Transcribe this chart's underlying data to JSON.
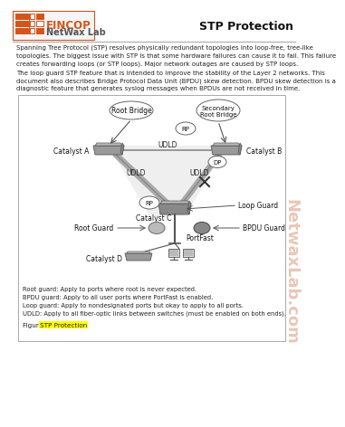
{
  "title": "STP Protection",
  "logo_text1": "EINCOP",
  "logo_text2": "NetWax Lab",
  "paragraph1": "Spanning Tree Protocol (STP) resolves physically redundant topologies into loop-free, tree-like\ntopologies. The biggest issue with STP is that some hardware failures can cause it to fail. This failure\ncreates forwarding loops (or STP loops). Major network outages are caused by STP loops.",
  "paragraph2": "The loop guard STP feature that is intended to improve the stability of the Layer 2 networks. This\ndocument also describes Bridge Protocol Data Unit (BPDU) skew detection. BPDU skew detection is a\ndiagnostic feature that generates syslog messages when BPDUs are not received in time.",
  "legend_lines": [
    "Root guard: Apply to ports where root is never expected.",
    "BPDU guard: Apply to all user ports where PortFast is enabled.",
    "Loop guard: Apply to nondesignated ports but okay to apply to all ports.",
    "UDLD: Apply to all fiber-optic links between switches (must be enabled on both ends)."
  ],
  "caption_pre": "Figure 1  ",
  "caption_highlight": "STP Protection",
  "watermark_text": "NetwaxLab.com",
  "bg_color": "#ffffff",
  "logo_orange": "#d4541a",
  "logo_border": "#d4541a",
  "header_line_color": "#aaaaaa",
  "text_color": "#222222",
  "title_color": "#111111",
  "diag_border": "#aaaaaa",
  "switch_color": "#999999",
  "switch_dark": "#777777",
  "oval_edge": "#666666",
  "line_color": "#777777",
  "highlight_yellow": "#ffff00",
  "watermark_color": "#c8724a",
  "diag_shadow": "#bbbbbb"
}
